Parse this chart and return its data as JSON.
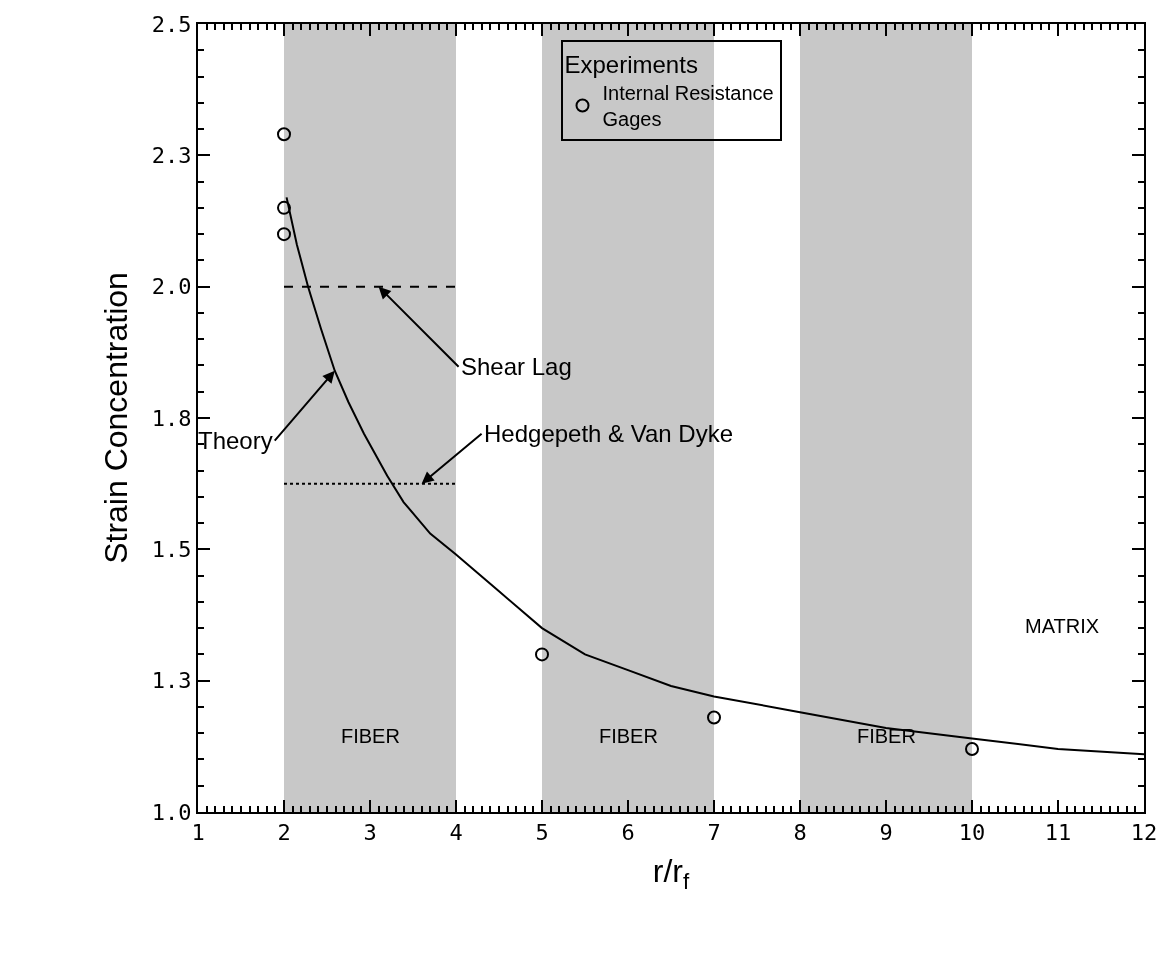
{
  "chart_data": {
    "type": "line",
    "xlabel": "r/r$_{f}$",
    "ylabel": "Strain Concentration",
    "legend_title": "Experiments",
    "xlim": [
      1,
      12
    ],
    "xticks": [
      1,
      2,
      3,
      4,
      5,
      6,
      7,
      8,
      9,
      10,
      11,
      12
    ],
    "ylim": [
      1.0,
      2.5
    ],
    "yticks": [
      {
        "value": 1.0,
        "label": "1.0"
      },
      {
        "value": 1.25,
        "label": "1.3"
      },
      {
        "value": 1.5,
        "label": "1.5"
      },
      {
        "value": 1.75,
        "label": "1.8"
      },
      {
        "value": 2.0,
        "label": "2.0"
      },
      {
        "value": 2.25,
        "label": "2.3"
      },
      {
        "value": 2.5,
        "label": "2.5"
      }
    ],
    "grid": false,
    "legend": "top",
    "series": [
      {
        "color": "#000000",
        "line_style": "solid",
        "marker": "none",
        "x": [
          2.03,
          2.15,
          2.28,
          2.43,
          2.59,
          2.75,
          2.93,
          3.2,
          3.39,
          3.7,
          4,
          4.5,
          5,
          5.5,
          6,
          6.5,
          7,
          8,
          9,
          10,
          11,
          12
        ],
        "values": [
          2.17,
          2.08,
          2.0,
          1.92,
          1.84,
          1.78,
          1.72,
          1.64,
          1.59,
          1.53,
          1.49,
          1.42,
          1.35,
          1.3,
          1.27,
          1.24,
          1.22,
          1.19,
          1.16,
          1.14,
          1.12,
          1.11
        ]
      },
      {
        "color": "#000000",
        "line_style": "dashed",
        "marker": "none",
        "x": [
          2,
          4
        ],
        "values": [
          2.0,
          2.0
        ]
      },
      {
        "color": "#000000",
        "line_style": "dotted",
        "marker": "none",
        "x": [
          2,
          4
        ],
        "values": [
          1.625,
          1.625
        ]
      },
      {
        "type": "scatter",
        "name": "Internal Resistance\nGages",
        "color": "#000000",
        "marker": "circle",
        "x": [
          2,
          2,
          2,
          5,
          7,
          10
        ],
        "values": [
          2.29,
          2.15,
          2.1,
          1.3,
          1.18,
          1.12
        ]
      }
    ],
    "bands": [
      {
        "axis": "x",
        "from": 2,
        "to": 4,
        "label": "FIBER",
        "color": "#c8c8c8"
      },
      {
        "axis": "x",
        "from": 5,
        "to": 7,
        "label": "FIBER",
        "color": "#c8c8c8"
      },
      {
        "axis": "x",
        "from": 8,
        "to": 10,
        "label": "FIBER",
        "color": "#c8c8c8"
      }
    ],
    "annotations": [
      {
        "text": "Shear Lag",
        "x": 3.1,
        "y": 2.0
      },
      {
        "text": "Theory",
        "x": 2.59,
        "y": 1.84
      },
      {
        "text": "Hedgepeth & Van Dyke",
        "x": 3.6,
        "y": 1.625
      },
      "MATRIX"
    ]
  }
}
